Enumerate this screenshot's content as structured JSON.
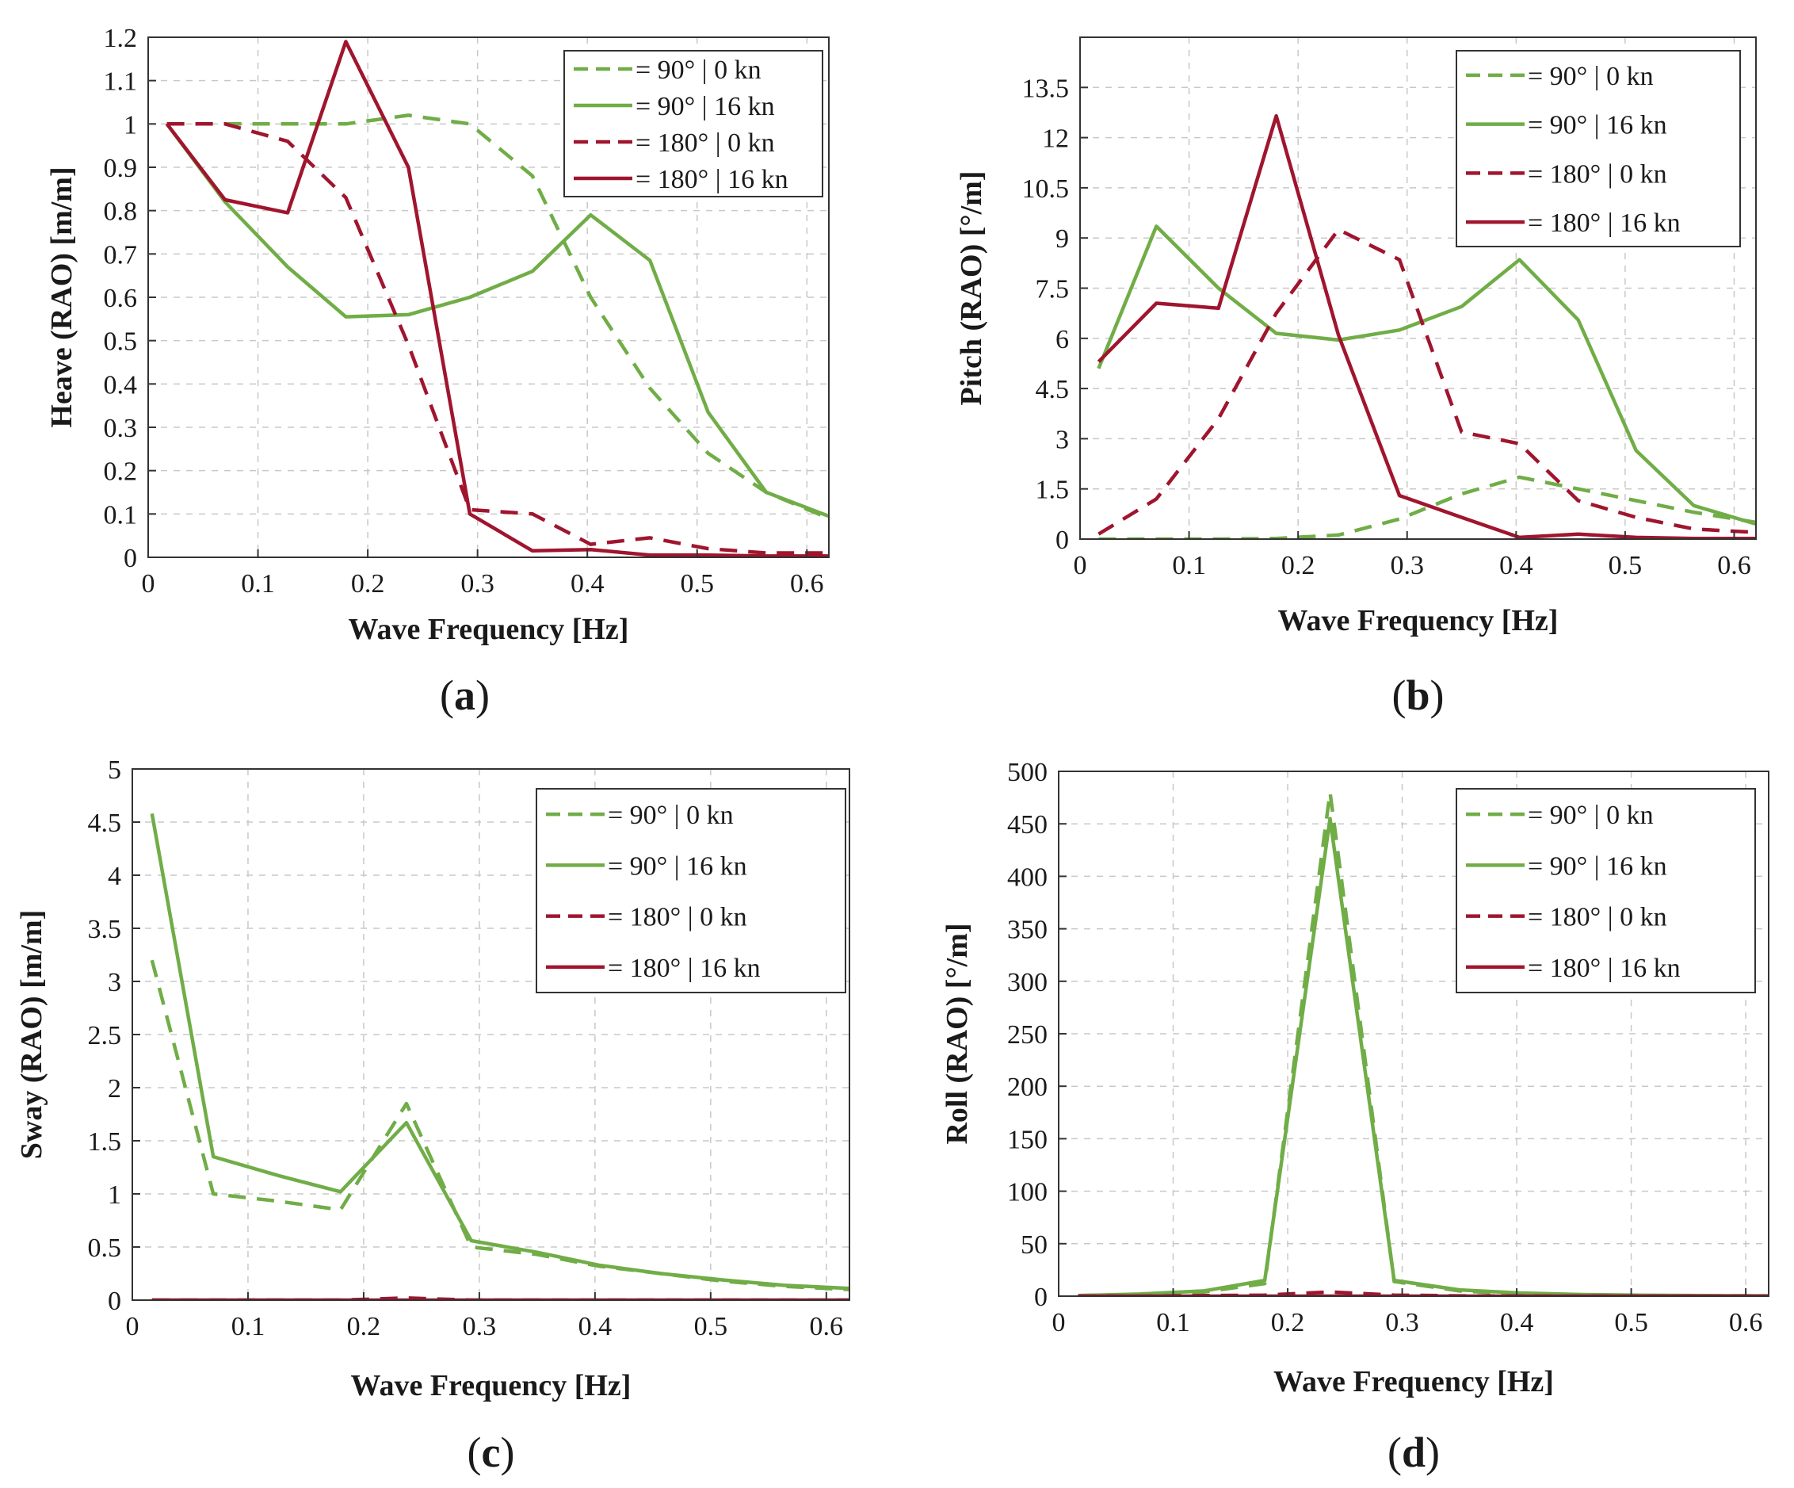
{
  "chart_data": [
    {
      "type": "line",
      "panel": "a",
      "caption": {
        "open": "(",
        "letter": "a",
        "close": ")"
      },
      "xlabel": "Wave Frequency [Hz]",
      "ylabel": "Heave (RAO) [m/m]",
      "xlim": [
        0,
        0.62
      ],
      "ylim": [
        0,
        1.2
      ],
      "xticks": [
        0,
        0.1,
        0.2,
        0.3,
        0.4,
        0.5,
        0.6
      ],
      "xtick_labels": [
        "0",
        "0.1",
        "0.2",
        "0.3",
        "0.4",
        "0.5",
        "0.6"
      ],
      "yticks": [
        0,
        0.1,
        0.2,
        0.3,
        0.4,
        0.5,
        0.6,
        0.7,
        0.8,
        0.9,
        1,
        1.1,
        1.2
      ],
      "ytick_labels": [
        "0",
        "0.1",
        "0.2",
        "0.3",
        "0.4",
        "0.5",
        "0.6",
        "0.7",
        "0.8",
        "0.9",
        "1",
        "1.1",
        "1.2"
      ],
      "grid": true,
      "legend_position": "top-right",
      "x": [
        0.017,
        0.07,
        0.127,
        0.18,
        0.237,
        0.293,
        0.35,
        0.403,
        0.457,
        0.51,
        0.563,
        0.62
      ],
      "series": [
        {
          "name": "= 90° | 0 kn",
          "color": "#70ad47",
          "dash": "dashed",
          "values": [
            1.0,
            1.0,
            1.0,
            1.0,
            1.02,
            1.0,
            0.88,
            0.6,
            0.39,
            0.24,
            0.15,
            0.09
          ]
        },
        {
          "name": "= 90° | 16 kn",
          "color": "#70ad47",
          "dash": "solid",
          "values": [
            1.0,
            0.82,
            0.67,
            0.555,
            0.56,
            0.6,
            0.66,
            0.79,
            0.685,
            0.335,
            0.15,
            0.095
          ]
        },
        {
          "name": "= 180° | 0 kn",
          "color": "#a0152e",
          "dash": "dashed",
          "values": [
            1.0,
            1.0,
            0.96,
            0.83,
            0.49,
            0.11,
            0.1,
            0.03,
            0.045,
            0.02,
            0.01,
            0.01
          ]
        },
        {
          "name": "= 180° | 16 kn",
          "color": "#a0152e",
          "dash": "solid",
          "values": [
            1.0,
            0.825,
            0.795,
            1.19,
            0.9,
            0.1,
            0.015,
            0.018,
            0.005,
            0.005,
            0.003,
            0.003
          ]
        }
      ]
    },
    {
      "type": "line",
      "panel": "b",
      "caption": {
        "open": "(",
        "letter": "b",
        "close": ")"
      },
      "xlabel": "Wave Frequency [Hz]",
      "ylabel": "Pitch (RAO) [°/m]",
      "xlim": [
        0,
        0.62
      ],
      "ylim": [
        0,
        15
      ],
      "xticks": [
        0,
        0.1,
        0.2,
        0.3,
        0.4,
        0.5,
        0.6
      ],
      "xtick_labels": [
        "0",
        "0.1",
        "0.2",
        "0.3",
        "0.4",
        "0.5",
        "0.6"
      ],
      "yticks": [
        0,
        1.5,
        3,
        4.5,
        6,
        7.5,
        9,
        10.5,
        12,
        13.5
      ],
      "ytick_labels": [
        "0",
        "1.5",
        "3",
        "4.5",
        "6",
        "7.5",
        "9",
        "10.5",
        "12",
        "13.5"
      ],
      "grid": true,
      "legend_position": "top-right",
      "x": [
        0.017,
        0.07,
        0.127,
        0.18,
        0.237,
        0.293,
        0.35,
        0.403,
        0.457,
        0.51,
        0.563,
        0.62
      ],
      "series": [
        {
          "name": "= 90°  |  0 kn",
          "color": "#70ad47",
          "dash": "dashed",
          "values": [
            0.0,
            0.0,
            0.0,
            0.02,
            0.12,
            0.6,
            1.35,
            1.85,
            1.5,
            1.15,
            0.8,
            0.5
          ]
        },
        {
          "name": "= 90°  |  16 kn",
          "color": "#70ad47",
          "dash": "solid",
          "values": [
            5.1,
            9.35,
            7.5,
            6.15,
            5.95,
            6.25,
            6.95,
            8.35,
            6.55,
            2.65,
            1.0,
            0.45
          ]
        },
        {
          "name": "= 180°  |  0 kn",
          "color": "#a0152e",
          "dash": "dashed",
          "values": [
            0.15,
            1.2,
            3.6,
            6.75,
            9.25,
            8.35,
            3.2,
            2.85,
            1.15,
            0.65,
            0.3,
            0.2
          ]
        },
        {
          "name": "= 180°  |  16 kn",
          "color": "#a0152e",
          "dash": "solid",
          "values": [
            5.3,
            7.05,
            6.9,
            12.65,
            6.1,
            1.3,
            0.65,
            0.05,
            0.15,
            0.05,
            0.02,
            0.02
          ]
        }
      ]
    },
    {
      "type": "line",
      "panel": "c",
      "caption": {
        "open": "(",
        "letter": "c",
        "close": ")"
      },
      "xlabel": "Wave Frequency [Hz]",
      "ylabel": "Sway (RAO) [m/m]",
      "xlim": [
        0,
        0.62
      ],
      "ylim": [
        0,
        5
      ],
      "xticks": [
        0,
        0.1,
        0.2,
        0.3,
        0.4,
        0.5,
        0.6
      ],
      "xtick_labels": [
        "0",
        "0.1",
        "0.2",
        "0.3",
        "0.4",
        "0.5",
        "0.6"
      ],
      "yticks": [
        0,
        0.5,
        1,
        1.5,
        2,
        2.5,
        3,
        3.5,
        4,
        4.5,
        5
      ],
      "ytick_labels": [
        "0",
        "0.5",
        "1",
        "1.5",
        "2",
        "2.5",
        "3",
        "3.5",
        "4",
        "4.5",
        "5"
      ],
      "grid": true,
      "legend_position": "top-right",
      "x": [
        0.017,
        0.07,
        0.127,
        0.18,
        0.237,
        0.293,
        0.35,
        0.403,
        0.457,
        0.51,
        0.563,
        0.62
      ],
      "series": [
        {
          "name": "= 90°  |  0 kn",
          "color": "#70ad47",
          "dash": "dashed",
          "values": [
            3.2,
            1.0,
            0.93,
            0.85,
            1.85,
            0.5,
            0.43,
            0.32,
            0.25,
            0.18,
            0.13,
            0.1
          ]
        },
        {
          "name": "= 90°  |  16 kn",
          "color": "#70ad47",
          "dash": "solid",
          "values": [
            4.58,
            1.35,
            1.17,
            1.02,
            1.67,
            0.56,
            0.45,
            0.33,
            0.25,
            0.19,
            0.14,
            0.11
          ]
        },
        {
          "name": "= 180°  |  0 kn",
          "color": "#a0152e",
          "dash": "dashed",
          "values": [
            0.0,
            0.0,
            0.0,
            0.0,
            0.02,
            0.0,
            0.0,
            0.0,
            0.0,
            0.0,
            0.0,
            0.0
          ]
        },
        {
          "name": "= 180°  |  16 kn",
          "color": "#a0152e",
          "dash": "solid",
          "values": [
            0.0,
            0.0,
            0.0,
            0.0,
            0.0,
            0.0,
            0.0,
            0.0,
            0.0,
            0.0,
            0.0,
            0.0
          ]
        }
      ]
    },
    {
      "type": "line",
      "panel": "d",
      "caption": {
        "open": "(",
        "letter": "d",
        "close": ")"
      },
      "xlabel": "Wave Frequency [Hz]",
      "ylabel": "Roll (RAO) [°/m]",
      "xlim": [
        0,
        0.62
      ],
      "ylim": [
        0,
        500
      ],
      "xticks": [
        0,
        0.1,
        0.2,
        0.3,
        0.4,
        0.5,
        0.6
      ],
      "xtick_labels": [
        "0",
        "0.1",
        "0.2",
        "0.3",
        "0.4",
        "0.5",
        "0.6"
      ],
      "yticks": [
        0,
        50,
        100,
        150,
        200,
        250,
        300,
        350,
        400,
        450,
        500
      ],
      "ytick_labels": [
        "0",
        "50",
        "100",
        "150",
        "200",
        "250",
        "300",
        "350",
        "400",
        "450",
        "500"
      ],
      "grid": true,
      "legend_position": "top-right",
      "x": [
        0.017,
        0.07,
        0.127,
        0.18,
        0.237,
        0.293,
        0.35,
        0.403,
        0.457,
        0.51,
        0.563,
        0.62
      ],
      "series": [
        {
          "name": "= 90°  |  0 kn",
          "color": "#70ad47",
          "dash": "dashed",
          "values": [
            0.5,
            1.5,
            4,
            12,
            480,
            14,
            5,
            2,
            1,
            0.5,
            0.3,
            0.2
          ]
        },
        {
          "name": "= 90°  |  16 kn",
          "color": "#70ad47",
          "dash": "solid",
          "values": [
            0.5,
            2,
            5,
            15,
            455,
            15,
            6,
            3,
            1.5,
            0.8,
            0.5,
            0.3
          ]
        },
        {
          "name": "= 180°  |  0 kn",
          "color": "#a0152e",
          "dash": "dashed",
          "values": [
            0,
            0,
            0.5,
            1,
            4,
            1,
            0.3,
            0.1,
            0,
            0,
            0,
            0
          ]
        },
        {
          "name": "= 180°  |  16 kn",
          "color": "#a0152e",
          "dash": "solid",
          "values": [
            0,
            0,
            0,
            0,
            0,
            0,
            0,
            0,
            0,
            0,
            0,
            0
          ]
        }
      ]
    }
  ]
}
